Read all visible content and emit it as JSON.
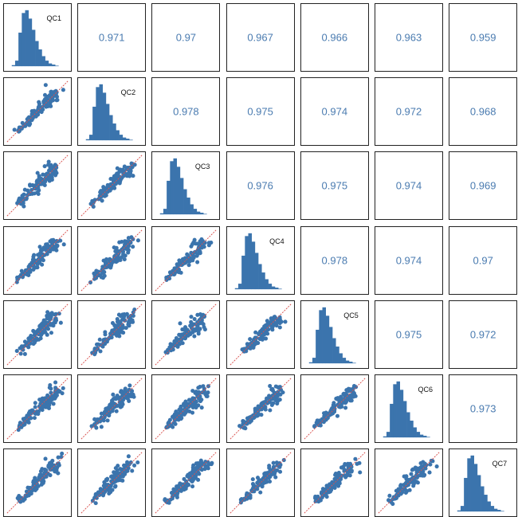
{
  "chart_data": {
    "type": "scatter-matrix",
    "variables": [
      "QC1",
      "QC2",
      "QC3",
      "QC4",
      "QC5",
      "QC6",
      "QC7"
    ],
    "correlations": [
      [
        null,
        0.971,
        0.97,
        0.967,
        0.966,
        0.963,
        0.959
      ],
      [
        null,
        null,
        0.978,
        0.975,
        0.974,
        0.972,
        0.968
      ],
      [
        null,
        null,
        null,
        0.976,
        0.975,
        0.974,
        0.969
      ],
      [
        null,
        null,
        null,
        null,
        0.978,
        0.974,
        0.97
      ],
      [
        null,
        null,
        null,
        null,
        null,
        0.975,
        0.972
      ],
      [
        null,
        null,
        null,
        null,
        null,
        null,
        0.973
      ],
      [
        null,
        null,
        null,
        null,
        null,
        null,
        null
      ]
    ],
    "diagonal": "histogram",
    "lower": "scatter with identity line",
    "histogram_relative_heights": [
      2,
      10,
      60,
      95,
      100,
      85,
      65,
      45,
      30,
      18,
      10,
      5,
      3,
      1
    ],
    "colors": {
      "points": "#3b74ad",
      "histogram": "#3b74ad",
      "identity_line": "#d9534f",
      "correlation_text": "#4a7bb0"
    }
  }
}
